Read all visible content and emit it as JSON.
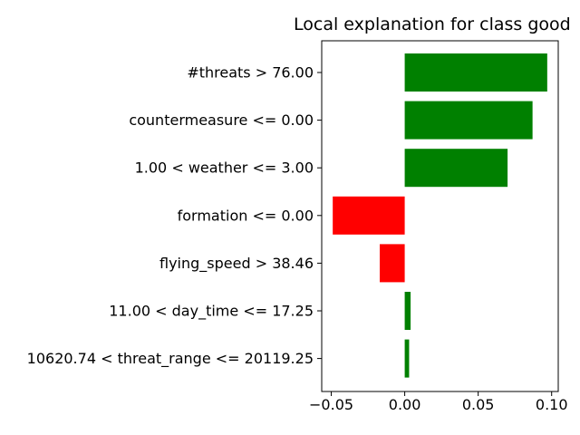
{
  "chart_data": {
    "type": "bar",
    "orientation": "horizontal",
    "title": "Local explanation for class good",
    "xlabel": "",
    "ylabel": "",
    "categories": [
      "#threats > 76.00",
      "countermeasure <= 0.00",
      "1.00 < weather <= 3.00",
      "formation <= 0.00",
      "flying_speed > 38.46",
      "11.00 < day_time <= 17.25",
      "10620.74 < threat_range <= 20119.25"
    ],
    "values": [
      0.097,
      0.087,
      0.07,
      -0.049,
      -0.017,
      0.004,
      0.003
    ],
    "xlim": [
      -0.0565,
      0.1045
    ],
    "xticks": [
      -0.05,
      0.0,
      0.05,
      0.1
    ],
    "xtick_labels": [
      "−0.05",
      "0.00",
      "0.05",
      "0.10"
    ],
    "grid": false,
    "colors": {
      "positive": "#008000",
      "negative": "#ff0000",
      "axis": "#000000"
    }
  }
}
